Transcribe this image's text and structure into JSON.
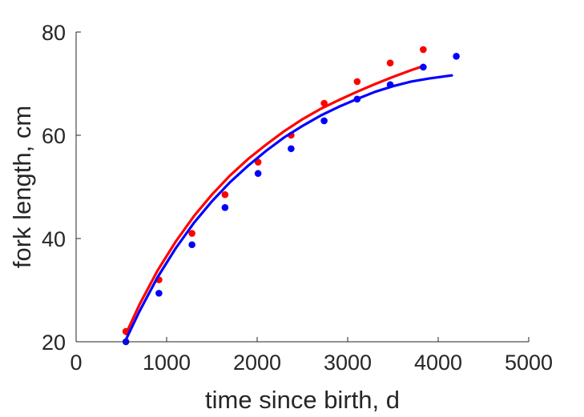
{
  "chart_data": {
    "type": "scatter",
    "title": "",
    "xlabel": "time since birth, d",
    "ylabel": "fork length, cm",
    "xlim": [
      0,
      5000
    ],
    "ylim": [
      20,
      80
    ],
    "xticks": [
      0,
      1000,
      2000,
      3000,
      4000,
      5000
    ],
    "yticks": [
      20,
      40,
      60,
      80
    ],
    "grid": false,
    "legend": "none",
    "series": [
      {
        "color": "#ff0000",
        "points": {
          "x": [
            550,
            915,
            1280,
            1645,
            2010,
            2375,
            2740,
            3105,
            3470,
            3835
          ],
          "y": [
            22,
            32,
            41,
            48.5,
            54.8,
            60,
            66.2,
            70.4,
            74,
            76.6
          ]
        },
        "fit": {
          "x": [
            550,
            700,
            900,
            1100,
            1300,
            1500,
            1700,
            1900,
            2100,
            2300,
            2500,
            2700,
            2900,
            3100,
            3300,
            3500,
            3700,
            3835
          ],
          "y": [
            21.5,
            27.2,
            33.8,
            39.4,
            44.3,
            48.5,
            52.2,
            55.4,
            58.2,
            60.8,
            63.1,
            65.1,
            66.8,
            68.4,
            69.9,
            71.3,
            72.6,
            73.4
          ]
        }
      },
      {
        "color": "#0000ff",
        "points": {
          "x": [
            550,
            915,
            1280,
            1645,
            2010,
            2375,
            2740,
            3105,
            3470,
            3835,
            4200
          ],
          "y": [
            20,
            29.4,
            38.8,
            46,
            52.6,
            57.4,
            62.8,
            67,
            69.8,
            73.2,
            75.3
          ]
        },
        "fit": {
          "x": [
            550,
            700,
            900,
            1100,
            1300,
            1500,
            1700,
            1900,
            2100,
            2300,
            2500,
            2700,
            2900,
            3100,
            3300,
            3500,
            3700,
            3900,
            4150
          ],
          "y": [
            20.4,
            25.9,
            32.5,
            38.1,
            43.0,
            47.2,
            50.9,
            54.1,
            57.0,
            59.6,
            61.8,
            63.8,
            65.5,
            67.0,
            68.4,
            69.5,
            70.4,
            71.0,
            71.6
          ]
        }
      }
    ]
  }
}
